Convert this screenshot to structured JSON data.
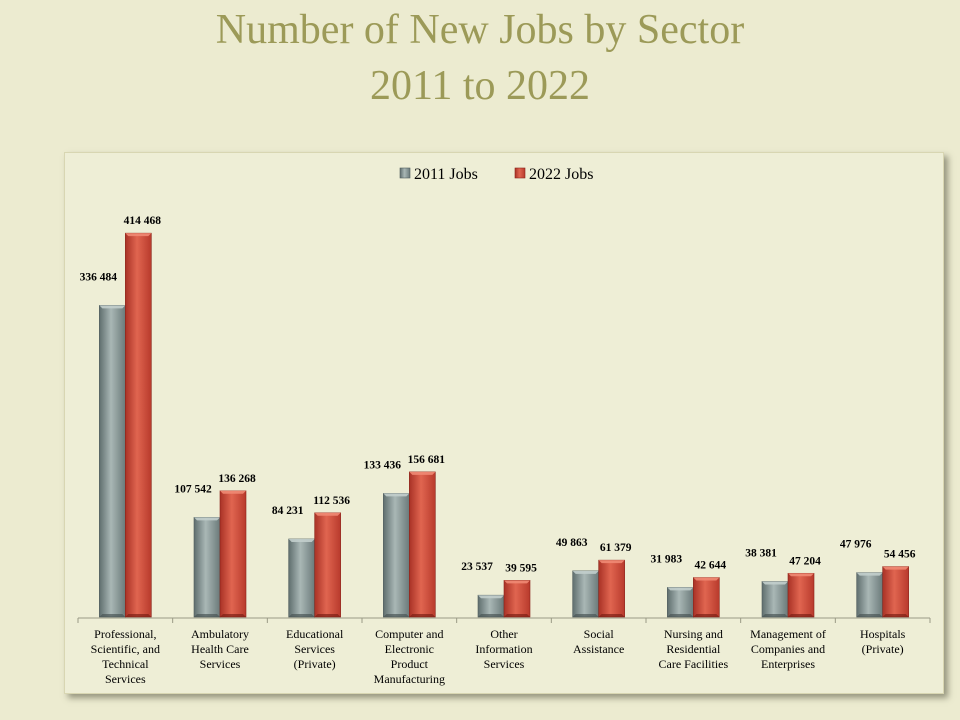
{
  "title_line1": "Number of New Jobs by Sector",
  "title_line2": "2011 to 2022",
  "chart_data": {
    "type": "bar",
    "title": "Number of New Jobs by Sector 2011 to 2022",
    "categories": [
      [
        "Professional,",
        "Scientific, and",
        "Technical",
        "Services"
      ],
      [
        "Ambulatory",
        "Health Care",
        "Services"
      ],
      [
        "Educational",
        "Services",
        "(Private)"
      ],
      [
        "Computer and",
        "Electronic",
        "Product",
        "Manufacturing"
      ],
      [
        "Other",
        "Information",
        "Services"
      ],
      [
        "Social",
        "Assistance"
      ],
      [
        "Nursing and",
        "Residential",
        "Care Facilities"
      ],
      [
        "Management of",
        "Companies and",
        "Enterprises"
      ],
      [
        "Hospitals",
        "(Private)"
      ]
    ],
    "series": [
      {
        "name": "2011 Jobs",
        "color": "#8a9898",
        "values": [
          336484,
          107542,
          84231,
          133436,
          23537,
          49863,
          31983,
          38381,
          47976
        ],
        "labels": [
          "336 484",
          "107 542",
          "84 231",
          "133 436",
          "23 537",
          "49 863",
          "31 983",
          "38 381",
          "47 976"
        ]
      },
      {
        "name": "2022 Jobs",
        "color": "#d04a38",
        "values": [
          414468,
          136268,
          112536,
          156681,
          39595,
          61379,
          42644,
          47204,
          54456
        ],
        "labels": [
          "414 468",
          "136 268",
          "112 536",
          "156 681",
          "39 595",
          "61 379",
          "42 644",
          "47 204",
          "54 456"
        ]
      }
    ],
    "ylim": [
      0,
      450000
    ],
    "grid": false,
    "legend": "top-center"
  }
}
